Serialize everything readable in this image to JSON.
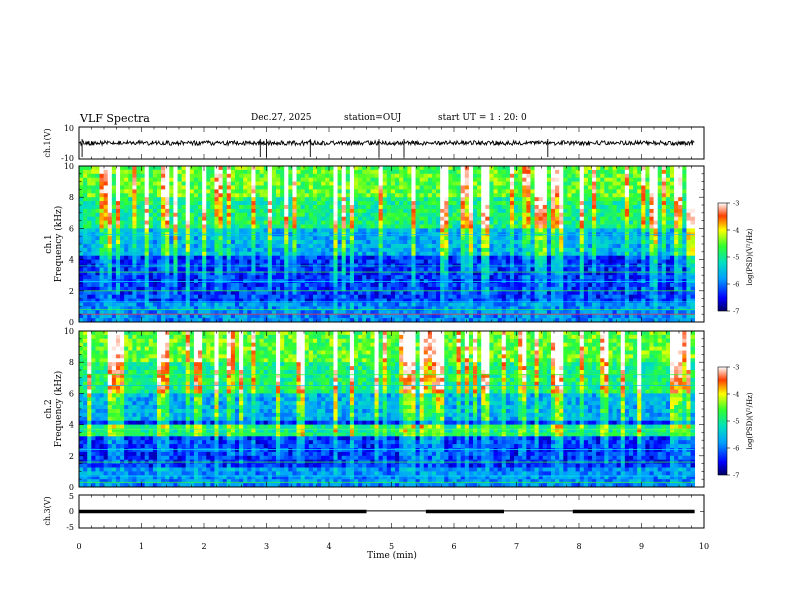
{
  "header": {
    "title": "VLF Spectra",
    "date": "Dec.27, 2025",
    "station": "station=OUJ",
    "start_ut": "start  UT =   1 : 20: 0"
  },
  "chart_data": [
    {
      "type": "line",
      "panel": "ch1-waveform",
      "ylabel": "ch.1(V)",
      "ylim": [
        -10,
        10
      ],
      "yticks": [
        "10",
        "-10"
      ],
      "xlim": [
        0,
        10
      ],
      "baseline": 0,
      "spike_times_min": [
        0.05,
        2.9,
        3.0,
        3.7,
        4.8,
        5.2,
        7.5
      ]
    },
    {
      "type": "heatmap",
      "panel": "ch1-spectrogram",
      "ylabel_channel": "ch.1",
      "ylabel": "Frequency (kHz)",
      "ylim": [
        0,
        10
      ],
      "yticks": [
        "0",
        "2",
        "4",
        "6",
        "8",
        "10"
      ],
      "xlim": [
        0,
        9.85
      ],
      "colorbar": {
        "label": "log(PSD)(V²/Hz)",
        "range": [
          -7,
          -3
        ],
        "ticks": [
          "-3",
          "-4",
          "-5",
          "-6",
          "-7"
        ]
      }
    },
    {
      "type": "heatmap",
      "panel": "ch2-spectrogram",
      "ylabel_channel": "ch.2",
      "ylabel": "Frequency (kHz)",
      "ylim": [
        0,
        10
      ],
      "yticks": [
        "0",
        "2",
        "4",
        "6",
        "8",
        "10"
      ],
      "xlim": [
        0,
        9.85
      ],
      "colorbar": {
        "label": "log(PSD)(V²/Hz)",
        "range": [
          -7,
          -3
        ],
        "ticks": [
          "-3",
          "-4",
          "-5",
          "-6",
          "-7"
        ]
      }
    },
    {
      "type": "line",
      "panel": "ch3-waveform",
      "ylabel": "ch.3(V)",
      "ylim": [
        -5,
        5
      ],
      "yticks": [
        "5",
        "0",
        "-5"
      ],
      "xlim": [
        0,
        10
      ],
      "segments": [
        [
          0,
          4.6,
          0
        ],
        [
          4.6,
          5.55,
          0.2
        ],
        [
          5.55,
          6.8,
          0
        ],
        [
          6.8,
          7.9,
          0.2
        ],
        [
          7.9,
          9.85,
          0
        ]
      ]
    }
  ],
  "xaxis": {
    "label": "Time  (min)",
    "ticks": [
      "0",
      "1",
      "2",
      "3",
      "4",
      "5",
      "6",
      "7",
      "8",
      "9",
      "10"
    ]
  }
}
